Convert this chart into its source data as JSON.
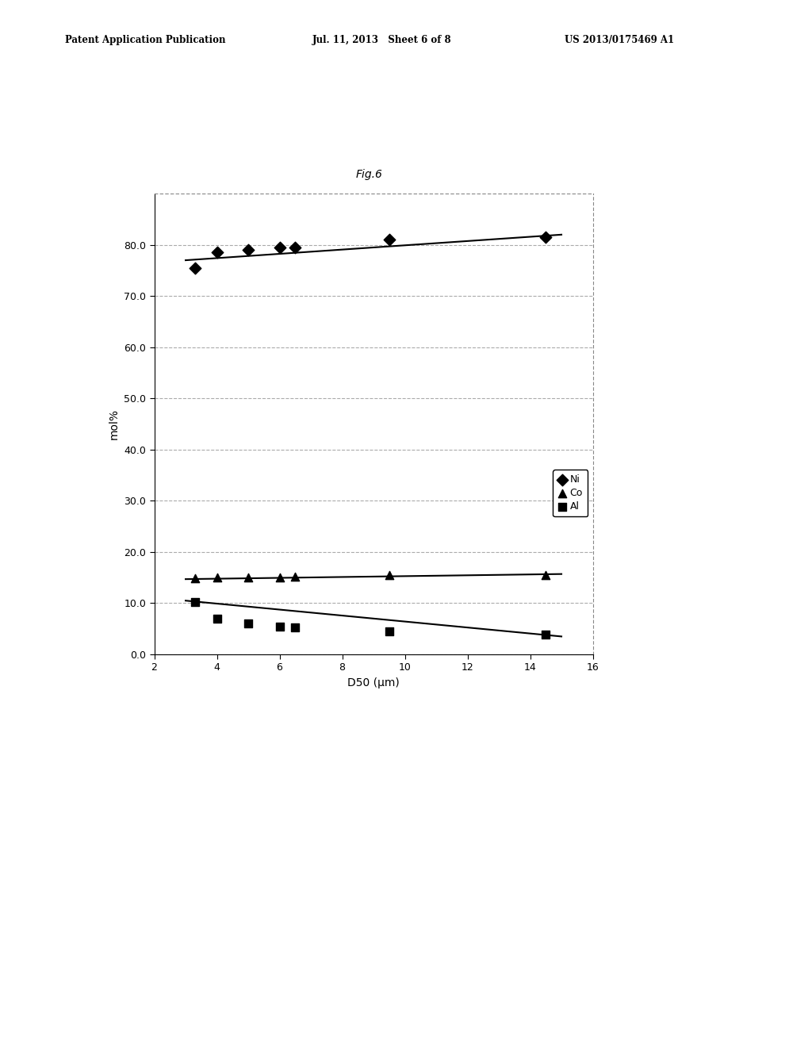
{
  "title": "Fig.6",
  "xlabel": "D50 (μm)",
  "ylabel": "mol%",
  "xlim": [
    2,
    16
  ],
  "ylim": [
    0.0,
    90.0
  ],
  "xticks": [
    2,
    4,
    6,
    8,
    10,
    12,
    14,
    16
  ],
  "yticks": [
    0.0,
    10.0,
    20.0,
    30.0,
    40.0,
    50.0,
    60.0,
    70.0,
    80.0
  ],
  "Ni_x": [
    3.3,
    4.0,
    5.0,
    6.0,
    6.5,
    9.5,
    14.5
  ],
  "Ni_y": [
    75.5,
    78.5,
    79.0,
    79.5,
    79.5,
    81.0,
    81.5
  ],
  "Co_x": [
    3.3,
    4.0,
    5.0,
    6.0,
    6.5,
    9.5,
    14.5
  ],
  "Co_y": [
    14.8,
    15.0,
    15.0,
    15.0,
    15.2,
    15.5,
    15.5
  ],
  "Al_x": [
    3.3,
    4.0,
    5.0,
    6.0,
    6.5,
    9.5,
    14.5
  ],
  "Al_y": [
    10.3,
    7.0,
    6.0,
    5.5,
    5.2,
    4.5,
    3.8
  ],
  "Ni_line_x": [
    3.0,
    15.0
  ],
  "Ni_line_y": [
    77.0,
    82.0
  ],
  "Co_line_x": [
    3.0,
    15.0
  ],
  "Co_line_y": [
    14.7,
    15.7
  ],
  "Al_line_x": [
    3.0,
    15.0
  ],
  "Al_line_y": [
    10.5,
    3.5
  ],
  "marker_color": "#000000",
  "line_color": "#000000",
  "background_color": "#ffffff",
  "grid_color": "#888888",
  "fig_title_fontsize": 10,
  "axis_label_fontsize": 10,
  "tick_fontsize": 9,
  "legend_fontsize": 9,
  "header_left": "Patent Application Publication",
  "header_mid": "Jul. 11, 2013   Sheet 6 of 8",
  "header_right": "US 2013/0175469 A1"
}
